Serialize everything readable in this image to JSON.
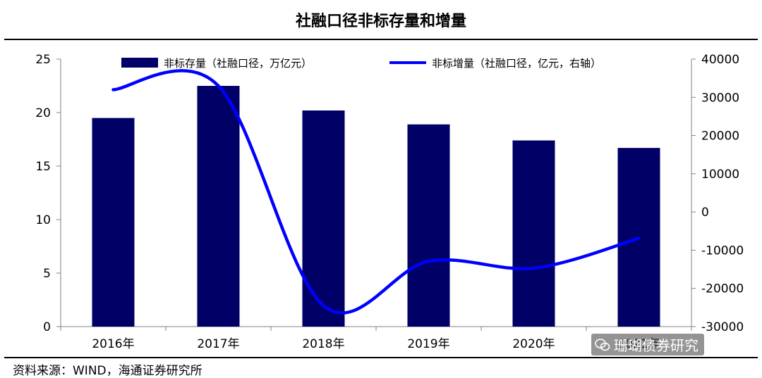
{
  "title": "社融口径非标存量和增量",
  "source": "资料来源：WIND，海通证券研究所",
  "watermark": "珊瑚债券研究",
  "colors": {
    "bar": "#000066",
    "line": "#0000FF",
    "axis": "#808080"
  },
  "chart_data": {
    "type": "bar+line",
    "categories": [
      "2016年",
      "2017年",
      "2018年",
      "2019年",
      "2020年",
      "2021年"
    ],
    "series": [
      {
        "name": "非标存量（社融口径，万亿元）",
        "type": "bar",
        "axis": "left",
        "values": [
          19.5,
          22.5,
          20.2,
          18.9,
          17.4,
          16.7
        ]
      },
      {
        "name": "非标增量（社融口径，亿元，右轴）",
        "type": "line",
        "axis": "right",
        "smooth": true,
        "values": [
          32000,
          33000,
          -24500,
          -12900,
          -14700,
          -6900
        ]
      }
    ],
    "y_left": {
      "min": 0,
      "max": 25,
      "ticks": [
        0,
        5,
        10,
        15,
        20,
        25
      ]
    },
    "y_right": {
      "min": -30000,
      "max": 40000,
      "ticks": [
        -30000,
        -20000,
        -10000,
        0,
        10000,
        20000,
        30000,
        40000
      ]
    },
    "legend": "top",
    "grid": false
  }
}
